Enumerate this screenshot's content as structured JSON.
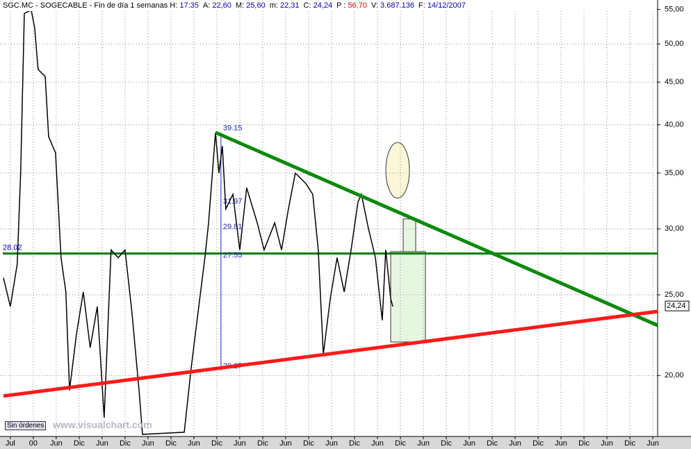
{
  "header": {
    "title": "SGC.MC - SOGECABLE - Fin de día 1 semanas",
    "fields": [
      {
        "label": "H:",
        "value": "17:35"
      },
      {
        "label": "A:",
        "value": "22,60"
      },
      {
        "label": "M:",
        "value": "25,60"
      },
      {
        "label": "m:",
        "value": "22,31"
      },
      {
        "label": "C:",
        "value": "24,24"
      },
      {
        "label": "P :",
        "value": "56,70"
      },
      {
        "label": "V:",
        "value": "3.687.136"
      },
      {
        "label": "F:",
        "value": "14/12/2007"
      }
    ]
  },
  "footer": {
    "button": "Sin órdenes",
    "watermark": "www.visualchart.com"
  },
  "chart_data": {
    "type": "line",
    "log_scale": true,
    "grid": true,
    "color": "#000000",
    "xlim": [
      -0.45,
      28.21
    ],
    "ylim": [
      16.9,
      55.6
    ],
    "xticks": [
      {
        "value": 0,
        "label": "Jul"
      },
      {
        "value": 1,
        "label": "00"
      },
      {
        "value": 2,
        "label": "Jun"
      },
      {
        "value": 3,
        "label": "Dic"
      },
      {
        "value": 4,
        "label": "Jun"
      },
      {
        "value": 5,
        "label": "Dic"
      },
      {
        "value": 6,
        "label": "Jun"
      },
      {
        "value": 7,
        "label": "Dic"
      },
      {
        "value": 8,
        "label": "Jun"
      },
      {
        "value": 9,
        "label": "Dic"
      },
      {
        "value": 10,
        "label": "Jun"
      },
      {
        "value": 11,
        "label": "Dic"
      },
      {
        "value": 12,
        "label": "Jun"
      },
      {
        "value": 13,
        "label": "Dic"
      },
      {
        "value": 14,
        "label": "Jun"
      },
      {
        "value": 15,
        "label": "Dic"
      },
      {
        "value": 16,
        "label": "Jun"
      },
      {
        "value": 17,
        "label": "Dic"
      },
      {
        "value": 18,
        "label": "Jun"
      },
      {
        "value": 19,
        "label": "Dic"
      },
      {
        "value": 20,
        "label": "Jun"
      },
      {
        "value": 21,
        "label": "Dic"
      },
      {
        "value": 22,
        "label": "Jun"
      },
      {
        "value": 23,
        "label": "Dic"
      },
      {
        "value": 24,
        "label": "Jun"
      },
      {
        "value": 25,
        "label": "Dic"
      },
      {
        "value": 26,
        "label": "Jun"
      },
      {
        "value": 27,
        "label": "Dic"
      },
      {
        "value": 28,
        "label": "Jun"
      }
    ],
    "yticks": [
      {
        "value": 20,
        "label": "20,00"
      },
      {
        "value": 25,
        "label": "25,00"
      },
      {
        "value": 30,
        "label": "30,00"
      },
      {
        "value": 35,
        "label": "35,00"
      },
      {
        "value": 40,
        "label": "40,00"
      },
      {
        "value": 45,
        "label": "45,00"
      },
      {
        "value": 50,
        "label": "50,00"
      },
      {
        "value": 55,
        "label": "55,00"
      }
    ],
    "x": [
      -0.3,
      0,
      0.3,
      0.45,
      0.61,
      0.91,
      1.06,
      1.21,
      1.52,
      1.67,
      1.97,
      2.21,
      2.42,
      2.58,
      2.88,
      3.18,
      3.48,
      3.79,
      4.09,
      4.39,
      4.7,
      5.0,
      5.3,
      5.61,
      5.76,
      7.58,
      7.88,
      8.18,
      8.48,
      8.64,
      8.94,
      9.09,
      9.24,
      9.39,
      9.7,
      10.0,
      10.3,
      10.76,
      11.06,
      11.52,
      11.82,
      12.12,
      12.42,
      12.88,
      13.18,
      13.42,
      13.64,
      13.94,
      14.24,
      14.55,
      14.85,
      15.15,
      15.3,
      15.61,
      15.91,
      16.21,
      16.36,
      16.58,
      16.67
    ],
    "values": [
      26.2,
      24.2,
      27.2,
      35.0,
      54.4,
      54.9,
      52.3,
      46.6,
      45.7,
      38.7,
      37.0,
      27.7,
      25.2,
      19.2,
      22.4,
      25.2,
      21.6,
      24.2,
      17.8,
      28.3,
      27.7,
      28.3,
      23.8,
      19.2,
      17.0,
      17.1,
      20.4,
      23.8,
      27.7,
      30.5,
      39.15,
      35.0,
      37.7,
      31.7,
      33.0,
      28.3,
      33.6,
      30.5,
      28.3,
      30.5,
      28.3,
      31.7,
      35.0,
      34.0,
      33.0,
      28.3,
      21.2,
      24.7,
      27.7,
      25.2,
      28.3,
      32.3,
      33.0,
      30.0,
      27.7,
      23.3,
      28.3,
      24.7,
      24.2
    ],
    "last_price": {
      "value": 24.24,
      "label": "24,24"
    },
    "support": {
      "value": 28.02,
      "label": "28.02",
      "color": "#0a7a0a"
    },
    "trendlines": [
      {
        "color": "#0a8a0a",
        "x": [
          8.94,
          28.33
        ],
        "y": [
          39.15,
          22.9
        ]
      },
      {
        "color": "#ff1a1a",
        "x": [
          -0.3,
          28.33
        ],
        "y": [
          18.9,
          23.9
        ]
      }
    ],
    "retracement": {
      "x": 9.18,
      "levels": [
        {
          "value": 39.15,
          "label": "39.15"
        },
        {
          "value": 31.97,
          "label": "31.97"
        },
        {
          "value": 29.81,
          "label": "29.81"
        },
        {
          "value": 27.55,
          "label": "27.55"
        },
        {
          "value": 20.27,
          "label": "20.27"
        }
      ]
    }
  }
}
